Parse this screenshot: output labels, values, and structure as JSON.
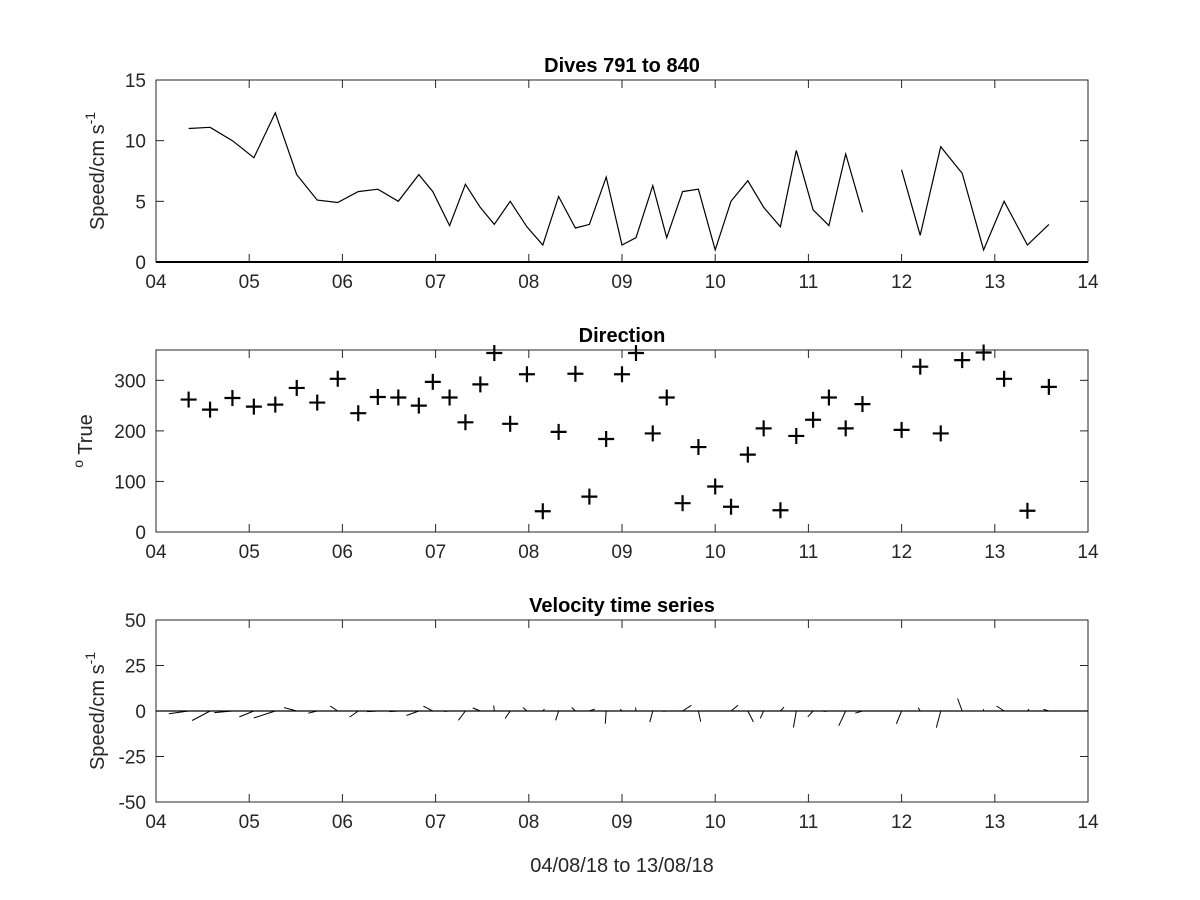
{
  "chart_data": [
    {
      "type": "line",
      "title": "Dives 791 to 840",
      "xlabel": "",
      "ylabel": "Speed/cm s",
      "ylabel_superscript": "-1",
      "xlim": [
        4,
        14
      ],
      "ylim": [
        0,
        15
      ],
      "xticks": [
        "04",
        "05",
        "06",
        "07",
        "08",
        "09",
        "10",
        "11",
        "12",
        "13",
        "14"
      ],
      "yticks": [
        "0",
        "5",
        "10",
        "15"
      ],
      "line_color": "#000000",
      "grid": false,
      "series": [
        {
          "x": [
            4.35,
            4.58,
            4.82,
            5.05,
            5.28,
            5.51,
            5.73,
            5.95,
            6.17,
            6.38,
            6.6,
            6.82,
            6.97,
            7.15,
            7.32,
            7.48,
            7.63,
            7.8,
            7.98,
            8.15,
            8.32,
            8.5,
            8.65,
            8.83,
            9.0,
            9.15,
            9.33,
            9.48,
            9.65,
            9.82,
            10.0,
            10.17,
            10.35,
            10.52,
            10.7,
            10.87,
            11.05,
            11.22,
            11.4,
            11.58,
            null,
            12.0,
            12.2,
            12.42,
            12.65,
            12.88,
            13.1,
            13.35,
            13.58
          ],
          "y": [
            11.0,
            11.1,
            10.0,
            8.6,
            12.3,
            7.2,
            5.1,
            4.9,
            5.8,
            6.0,
            5.0,
            7.2,
            5.8,
            3.0,
            6.4,
            4.5,
            3.1,
            5.0,
            2.9,
            1.4,
            5.4,
            2.8,
            3.1,
            7.0,
            1.4,
            2.0,
            6.3,
            2.0,
            5.8,
            6.0,
            1.0,
            5.0,
            6.7,
            4.5,
            2.9,
            9.2,
            4.3,
            3.0,
            8.9,
            4.1,
            null,
            7.6,
            2.2,
            9.5,
            7.3,
            1.0,
            5.0,
            1.4,
            3.1
          ]
        }
      ]
    },
    {
      "type": "scatter",
      "title": "Direction",
      "xlabel": "",
      "ylabel": "True",
      "ylabel_superscript": "o",
      "xlim": [
        4,
        14
      ],
      "ylim": [
        0,
        360
      ],
      "xticks": [
        "04",
        "05",
        "06",
        "07",
        "08",
        "09",
        "10",
        "11",
        "12",
        "13",
        "14"
      ],
      "yticks": [
        "0",
        "100",
        "200",
        "300"
      ],
      "marker": "+",
      "grid": false,
      "series": [
        {
          "x": [
            4.35,
            4.58,
            4.82,
            5.05,
            5.28,
            5.51,
            5.73,
            5.95,
            6.17,
            6.38,
            6.6,
            6.82,
            6.97,
            7.15,
            7.32,
            7.48,
            7.63,
            7.8,
            7.98,
            8.15,
            8.32,
            8.5,
            8.65,
            8.83,
            9.0,
            9.15,
            9.33,
            9.48,
            9.65,
            9.82,
            10.0,
            10.17,
            10.35,
            10.52,
            10.7,
            10.87,
            11.05,
            11.22,
            11.4,
            11.58,
            12.0,
            12.2,
            12.42,
            12.65,
            12.88,
            13.1,
            13.35,
            13.58
          ],
          "y": [
            262,
            242,
            265,
            248,
            252,
            285,
            256,
            303,
            235,
            267,
            266,
            250,
            297,
            266,
            217,
            292,
            354,
            214,
            312,
            41,
            198,
            313,
            70,
            184,
            312,
            354,
            195,
            266,
            57,
            168,
            90,
            50,
            153,
            205,
            43,
            190,
            222,
            266,
            205,
            253,
            202,
            327,
            195,
            340,
            355,
            303,
            42,
            287
          ]
        }
      ]
    },
    {
      "type": "quiver",
      "title": "Velocity time series",
      "xlabel": "04/08/18 to 13/08/18",
      "ylabel": "Speed/cm s",
      "ylabel_superscript": "-1",
      "xlim": [
        4,
        14
      ],
      "ylim": [
        -50,
        50
      ],
      "xticks": [
        "04",
        "05",
        "06",
        "07",
        "08",
        "09",
        "10",
        "11",
        "12",
        "13",
        "14"
      ],
      "yticks": [
        "-50",
        "-25",
        "0",
        "25",
        "50"
      ],
      "baseline": 0,
      "grid": false,
      "series": [
        {
          "x": [
            4.35,
            4.58,
            4.82,
            5.05,
            5.28,
            5.51,
            5.73,
            5.95,
            6.17,
            6.38,
            6.6,
            6.82,
            6.97,
            7.15,
            7.32,
            7.48,
            7.63,
            7.8,
            7.98,
            8.15,
            8.32,
            8.5,
            8.65,
            8.83,
            9.0,
            9.15,
            9.33,
            9.48,
            9.65,
            9.82,
            10.0,
            10.17,
            10.35,
            10.52,
            10.7,
            10.87,
            11.05,
            11.22,
            11.4,
            11.58,
            12.0,
            12.2,
            12.42,
            12.65,
            12.88,
            13.1,
            13.35,
            13.58
          ],
          "speed": [
            11.0,
            11.1,
            10.0,
            8.6,
            12.3,
            7.2,
            5.1,
            4.9,
            5.8,
            6.0,
            5.0,
            7.2,
            5.8,
            3.0,
            6.4,
            4.5,
            3.1,
            5.0,
            2.9,
            1.4,
            5.4,
            2.8,
            3.1,
            7.0,
            1.4,
            2.0,
            6.3,
            2.0,
            5.8,
            6.0,
            1.0,
            5.0,
            6.7,
            4.5,
            2.9,
            9.2,
            4.3,
            3.0,
            8.9,
            4.1,
            7.6,
            2.2,
            9.5,
            7.3,
            1.0,
            5.0,
            1.4,
            3.1
          ],
          "direction_deg_true": [
            262,
            242,
            265,
            248,
            252,
            285,
            256,
            303,
            235,
            267,
            266,
            250,
            297,
            266,
            217,
            292,
            354,
            214,
            312,
            41,
            198,
            313,
            70,
            184,
            312,
            354,
            195,
            266,
            57,
            168,
            90,
            50,
            153,
            205,
            43,
            190,
            222,
            266,
            205,
            253,
            202,
            327,
            195,
            340,
            355,
            303,
            42,
            287
          ]
        }
      ]
    }
  ]
}
